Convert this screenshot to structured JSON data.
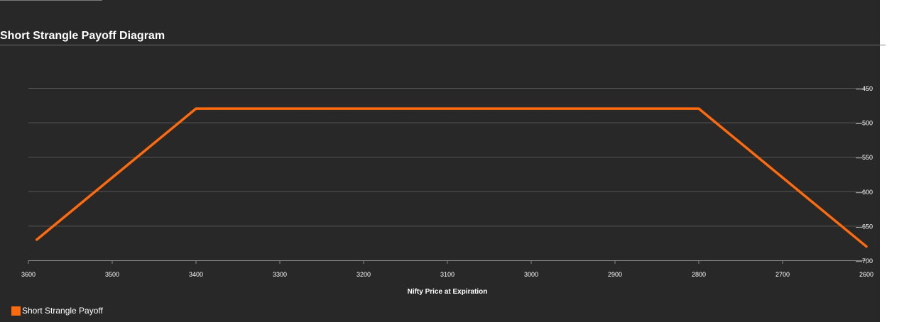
{
  "chart_data": {
    "type": "line",
    "title": "Short Strangle Payoff Diagram",
    "xlabel": "Nifty Price at Expiration",
    "ylabel": "",
    "x_reversed": true,
    "xlim": [
      3600,
      2600
    ],
    "ylim": [
      -700,
      -450
    ],
    "x_ticks": [
      "3600",
      "3500",
      "3400",
      "3300",
      "3200",
      "3100",
      "3000",
      "2900",
      "2800",
      "2700",
      "2600"
    ],
    "y_ticks": [
      "-450",
      "-500",
      "-550",
      "-600",
      "-650",
      "-700"
    ],
    "y_axis_position": "right",
    "grid": true,
    "legend_position": "bottom-left",
    "series": [
      {
        "name": "Short Strangle Payoff",
        "color": "#ff6a0e",
        "points": [
          [
            3590,
            -670
          ],
          [
            3400,
            -480
          ],
          [
            2800,
            -480
          ],
          [
            2600,
            -680
          ]
        ]
      }
    ]
  }
}
